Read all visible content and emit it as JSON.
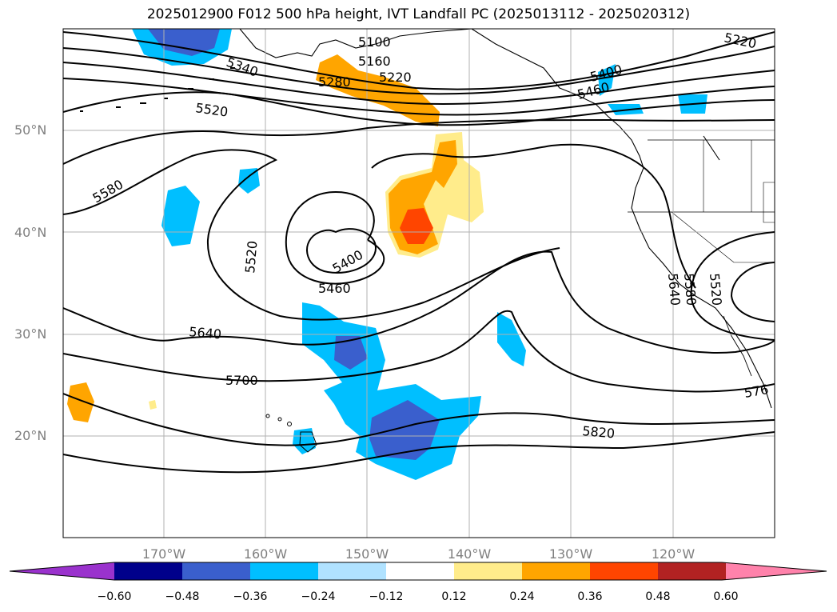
{
  "title": "2025012900 F012 500 hPa height, IVT Landfall PC (2025013112 - 2025020312)",
  "map": {
    "lat_labels": [
      "50°N",
      "40°N",
      "30°N",
      "20°N"
    ],
    "lon_labels": [
      "170°W",
      "160°W",
      "150°W",
      "140°W",
      "130°W",
      "120°W"
    ],
    "height_contour_labels": [
      "5100",
      "5160",
      "5220",
      "5220",
      "5280",
      "5340",
      "5400",
      "5400",
      "5460",
      "5460",
      "5520",
      "5520",
      "5520",
      "5580",
      "5580",
      "5640",
      "5640",
      "5700",
      "576",
      "5820"
    ],
    "fill_colors": {
      "neg_060": "#9a32cd",
      "neg_048": "#00008b",
      "neg_036": "#3a5fcd",
      "neg_024": "#00bfff",
      "neg_012": "#b0e2ff",
      "near_zero": "#ffffff",
      "pos_012": "#ffec8b",
      "pos_024": "#ffa500",
      "pos_036": "#ff4500",
      "pos_048": "#b22222",
      "pos_060": "#ff82ab"
    }
  },
  "colorbar": {
    "ticks": [
      "−0.60",
      "−0.48",
      "−0.36",
      "−0.24",
      "−0.12",
      "0.12",
      "0.24",
      "0.36",
      "0.48",
      "0.60"
    ],
    "colors": [
      "#9a32cd",
      "#00008b",
      "#3a5fcd",
      "#00bfff",
      "#b0e2ff",
      "#ffffff",
      "#ffec8b",
      "#ffa500",
      "#ff4500",
      "#b22222",
      "#ff82ab"
    ]
  }
}
